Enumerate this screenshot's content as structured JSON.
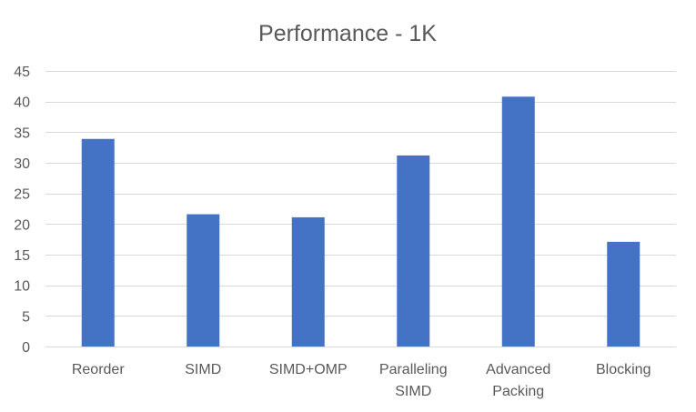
{
  "chart_data": {
    "type": "bar",
    "title": "Performance - 1K",
    "xlabel": "",
    "ylabel": "",
    "categories": [
      "Reorder",
      "SIMD",
      "SIMD+OMP",
      "Paralleling SIMD",
      "Advanced Packing",
      "Blocking"
    ],
    "category_lines": [
      [
        "Reorder"
      ],
      [
        "SIMD"
      ],
      [
        "SIMD+OMP"
      ],
      [
        "Paralleling",
        "SIMD"
      ],
      [
        "Advanced",
        "Packing"
      ],
      [
        "Blocking"
      ]
    ],
    "values": [
      33.9,
      21.6,
      21.1,
      31.2,
      40.8,
      17.1
    ],
    "ylim": [
      0,
      45
    ],
    "yticks": [
      0,
      5,
      10,
      15,
      20,
      25,
      30,
      35,
      40,
      45
    ],
    "grid": true,
    "legend": "none",
    "bar_color": "#4472c4",
    "grid_color": "#d9d9d9",
    "text_color": "#595959"
  }
}
